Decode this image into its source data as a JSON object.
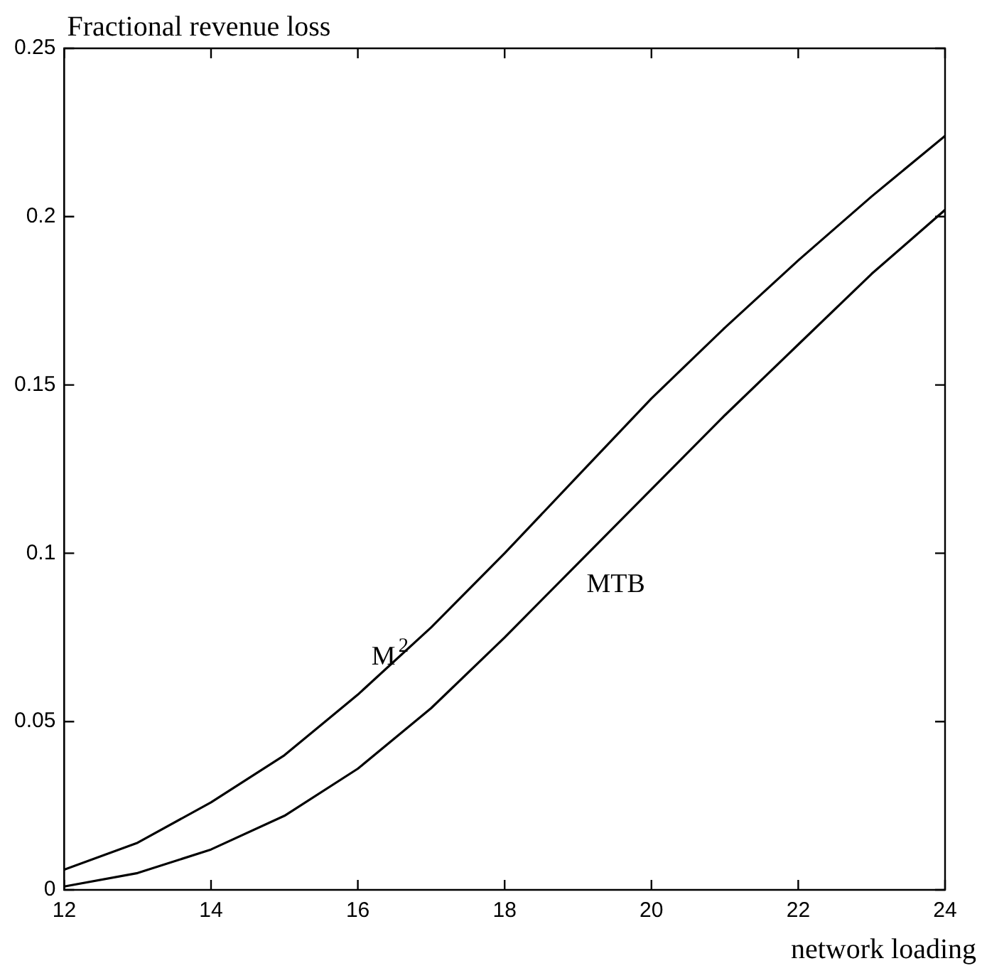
{
  "chart_data": {
    "type": "line",
    "ylabel": "Fractional revenue loss",
    "xlabel": "network loading",
    "x": [
      12,
      13,
      14,
      15,
      16,
      17,
      18,
      19,
      20,
      21,
      22,
      23,
      24
    ],
    "series": [
      {
        "name": "M$^{2}$",
        "color": "#000000",
        "values": [
          0.006,
          0.014,
          0.026,
          0.04,
          0.058,
          0.078,
          0.1,
          0.123,
          0.146,
          0.167,
          0.187,
          0.206,
          0.224
        ]
      },
      {
        "name": "MTB",
        "color": "#000000",
        "values": [
          0.001,
          0.005,
          0.012,
          0.022,
          0.036,
          0.054,
          0.075,
          0.097,
          0.119,
          0.141,
          0.162,
          0.183,
          0.202
        ]
      }
    ],
    "xlim": [
      12,
      24
    ],
    "xticks": [
      12,
      14,
      16,
      18,
      20,
      22,
      24
    ],
    "ylim": [
      0,
      0.25
    ],
    "yticks": [
      0,
      0.05,
      0.1,
      0.15,
      0.2,
      0.25
    ],
    "grid": false,
    "legend": false,
    "marker": "none",
    "line_style": "solid"
  }
}
